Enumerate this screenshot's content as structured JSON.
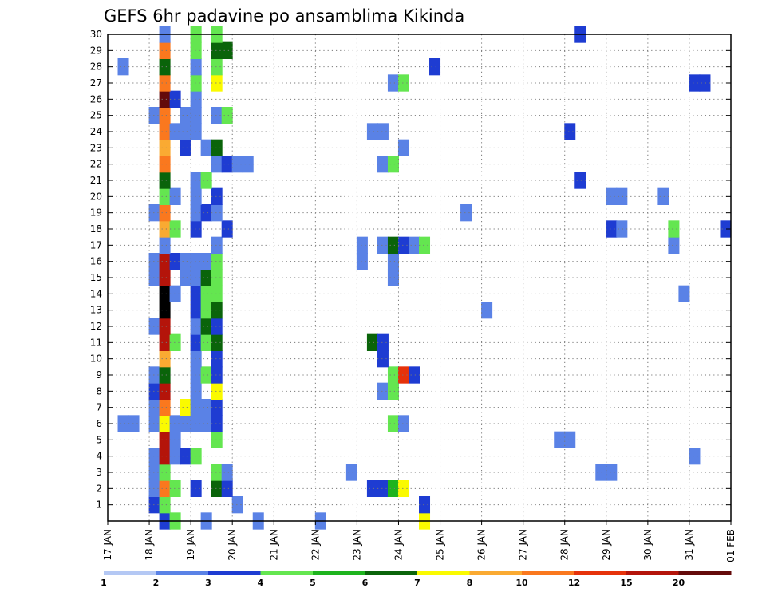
{
  "chart_data": {
    "type": "heatmap",
    "title": "GEFS 6hr padavine po ansamblima Kikinda",
    "x_tick_labels": [
      "17 JAN",
      "18 JAN",
      "19 JAN",
      "20 JAN",
      "21 JAN",
      "22 JAN",
      "23 JAN",
      "24 JAN",
      "25 JAN",
      "26 JAN",
      "27 JAN",
      "28 JAN",
      "29 JAN",
      "30 JAN",
      "31 JAN",
      "01 FEB"
    ],
    "y_tick_labels": [
      "1",
      "2",
      "3",
      "4",
      "5",
      "6",
      "7",
      "8",
      "9",
      "10",
      "11",
      "12",
      "13",
      "14",
      "15",
      "16",
      "17",
      "18",
      "19",
      "20",
      "21",
      "22",
      "23",
      "24",
      "25",
      "26",
      "27",
      "28",
      "29",
      "30"
    ],
    "ensemble_members": [
      0,
      30
    ],
    "time_steps_per_day": 4,
    "colorbar": {
      "levels": [
        "1",
        "2",
        "3",
        "4",
        "5",
        "6",
        "7",
        "8",
        "10",
        "12",
        "15",
        "20"
      ],
      "colors": [
        "#b4c8f4",
        "#5a82e6",
        "#1e3cd2",
        "#64e650",
        "#1eb41e",
        "#0a640a",
        "#fafa00",
        "#faaa32",
        "#fa781e",
        "#e6320a",
        "#b4140a",
        "#640a0a"
      ]
    },
    "cells": [
      [
        0,
        5,
        2
      ],
      [
        0,
        6,
        3
      ],
      [
        0,
        9,
        1
      ],
      [
        0,
        14,
        1
      ],
      [
        0,
        20,
        1
      ],
      [
        0,
        30,
        6
      ],
      [
        1,
        4,
        2
      ],
      [
        1,
        5,
        3
      ],
      [
        1,
        12,
        1
      ],
      [
        1,
        30,
        2
      ],
      [
        2,
        4,
        1
      ],
      [
        2,
        5,
        8
      ],
      [
        2,
        6,
        3
      ],
      [
        2,
        8,
        2
      ],
      [
        2,
        10,
        5
      ],
      [
        2,
        11,
        2
      ],
      [
        2,
        25,
        2
      ],
      [
        2,
        26,
        2
      ],
      [
        2,
        27,
        4
      ],
      [
        2,
        28,
        6
      ],
      [
        3,
        4,
        1
      ],
      [
        3,
        5,
        3
      ],
      [
        3,
        10,
        3
      ],
      [
        3,
        11,
        1
      ],
      [
        3,
        23,
        1
      ],
      [
        3,
        47,
        1
      ],
      [
        3,
        48,
        1
      ],
      [
        4,
        4,
        1
      ],
      [
        4,
        5,
        10
      ],
      [
        4,
        6,
        1
      ],
      [
        4,
        7,
        2
      ],
      [
        4,
        8,
        3
      ],
      [
        4,
        56,
        1
      ],
      [
        5,
        5,
        10
      ],
      [
        5,
        6,
        1
      ],
      [
        5,
        10,
        3
      ],
      [
        5,
        43,
        1
      ],
      [
        5,
        44,
        1
      ],
      [
        6,
        1,
        1
      ],
      [
        6,
        2,
        1
      ],
      [
        6,
        4,
        1
      ],
      [
        6,
        5,
        6
      ],
      [
        6,
        6,
        1
      ],
      [
        6,
        7,
        1
      ],
      [
        6,
        8,
        1
      ],
      [
        6,
        9,
        1
      ],
      [
        6,
        10,
        2
      ],
      [
        6,
        27,
        3
      ],
      [
        6,
        28,
        1
      ],
      [
        7,
        4,
        1
      ],
      [
        7,
        5,
        8
      ],
      [
        7,
        7,
        6
      ],
      [
        7,
        8,
        1
      ],
      [
        7,
        9,
        1
      ],
      [
        7,
        10,
        2
      ],
      [
        8,
        4,
        2
      ],
      [
        8,
        5,
        10
      ],
      [
        8,
        8,
        1
      ],
      [
        8,
        10,
        6
      ],
      [
        8,
        26,
        1
      ],
      [
        8,
        27,
        3
      ],
      [
        9,
        4,
        1
      ],
      [
        9,
        5,
        5
      ],
      [
        9,
        8,
        1
      ],
      [
        9,
        9,
        3
      ],
      [
        9,
        10,
        2
      ],
      [
        9,
        27,
        3
      ],
      [
        9,
        28,
        9
      ],
      [
        9,
        29,
        2
      ],
      [
        10,
        5,
        7
      ],
      [
        10,
        8,
        1
      ],
      [
        10,
        10,
        2
      ],
      [
        10,
        26,
        2
      ],
      [
        11,
        5,
        10
      ],
      [
        11,
        6,
        3
      ],
      [
        11,
        8,
        2
      ],
      [
        11,
        9,
        3
      ],
      [
        11,
        10,
        5
      ],
      [
        11,
        25,
        5
      ],
      [
        11,
        26,
        2
      ],
      [
        12,
        4,
        1
      ],
      [
        12,
        5,
        10
      ],
      [
        12,
        8,
        1
      ],
      [
        12,
        9,
        5
      ],
      [
        12,
        10,
        2
      ],
      [
        13,
        5,
        12
      ],
      [
        13,
        8,
        2
      ],
      [
        13,
        9,
        3
      ],
      [
        13,
        10,
        5
      ],
      [
        13,
        36,
        1
      ],
      [
        14,
        5,
        12
      ],
      [
        14,
        6,
        1
      ],
      [
        14,
        8,
        2
      ],
      [
        14,
        9,
        3
      ],
      [
        14,
        10,
        3
      ],
      [
        14,
        55,
        1
      ],
      [
        15,
        4,
        1
      ],
      [
        15,
        5,
        10
      ],
      [
        15,
        7,
        1
      ],
      [
        15,
        8,
        1
      ],
      [
        15,
        9,
        5
      ],
      [
        15,
        10,
        3
      ],
      [
        15,
        27,
        1
      ],
      [
        16,
        4,
        1
      ],
      [
        16,
        5,
        10
      ],
      [
        16,
        6,
        2
      ],
      [
        16,
        7,
        1
      ],
      [
        16,
        8,
        1
      ],
      [
        16,
        9,
        1
      ],
      [
        16,
        10,
        3
      ],
      [
        16,
        24,
        1
      ],
      [
        16,
        27,
        1
      ],
      [
        17,
        5,
        1
      ],
      [
        17,
        10,
        1
      ],
      [
        17,
        24,
        1
      ],
      [
        17,
        26,
        1
      ],
      [
        17,
        27,
        5
      ],
      [
        17,
        28,
        2
      ],
      [
        17,
        29,
        1
      ],
      [
        17,
        30,
        3
      ],
      [
        17,
        54,
        1
      ],
      [
        18,
        5,
        7
      ],
      [
        18,
        6,
        3
      ],
      [
        18,
        8,
        2
      ],
      [
        18,
        11,
        2
      ],
      [
        18,
        48,
        2
      ],
      [
        18,
        49,
        1
      ],
      [
        18,
        54,
        3
      ],
      [
        18,
        59,
        2
      ],
      [
        19,
        4,
        1
      ],
      [
        19,
        5,
        8
      ],
      [
        19,
        8,
        1
      ],
      [
        19,
        9,
        2
      ],
      [
        19,
        10,
        1
      ],
      [
        19,
        34,
        1
      ],
      [
        20,
        5,
        3
      ],
      [
        20,
        6,
        1
      ],
      [
        20,
        8,
        1
      ],
      [
        20,
        10,
        2
      ],
      [
        20,
        48,
        1
      ],
      [
        20,
        49,
        1
      ],
      [
        20,
        53,
        1
      ],
      [
        21,
        5,
        5
      ],
      [
        21,
        8,
        1
      ],
      [
        21,
        9,
        3
      ],
      [
        21,
        45,
        2
      ],
      [
        22,
        5,
        8
      ],
      [
        22,
        10,
        1
      ],
      [
        22,
        11,
        2
      ],
      [
        22,
        12,
        1
      ],
      [
        22,
        13,
        1
      ],
      [
        22,
        26,
        1
      ],
      [
        22,
        27,
        3
      ],
      [
        23,
        5,
        7
      ],
      [
        23,
        7,
        2
      ],
      [
        23,
        9,
        1
      ],
      [
        23,
        10,
        5
      ],
      [
        23,
        28,
        1
      ],
      [
        24,
        5,
        8
      ],
      [
        24,
        6,
        1
      ],
      [
        24,
        7,
        1
      ],
      [
        24,
        8,
        1
      ],
      [
        24,
        25,
        1
      ],
      [
        24,
        26,
        1
      ],
      [
        24,
        44,
        2
      ],
      [
        25,
        4,
        1
      ],
      [
        25,
        5,
        8
      ],
      [
        25,
        7,
        1
      ],
      [
        25,
        8,
        1
      ],
      [
        25,
        10,
        1
      ],
      [
        25,
        11,
        3
      ],
      [
        26,
        5,
        11
      ],
      [
        26,
        6,
        2
      ],
      [
        26,
        8,
        1
      ],
      [
        27,
        5,
        8
      ],
      [
        27,
        8,
        3
      ],
      [
        27,
        10,
        6
      ],
      [
        27,
        27,
        1
      ],
      [
        27,
        28,
        3
      ],
      [
        27,
        56,
        2
      ],
      [
        27,
        57,
        2
      ],
      [
        28,
        1,
        1
      ],
      [
        28,
        5,
        5
      ],
      [
        28,
        8,
        1
      ],
      [
        28,
        10,
        3
      ],
      [
        28,
        31,
        2
      ],
      [
        29,
        5,
        8
      ],
      [
        29,
        8,
        3
      ],
      [
        29,
        10,
        5
      ],
      [
        29,
        11,
        5
      ],
      [
        30,
        5,
        1
      ],
      [
        30,
        8,
        3
      ],
      [
        30,
        10,
        3
      ],
      [
        30,
        45,
        2
      ]
    ]
  }
}
